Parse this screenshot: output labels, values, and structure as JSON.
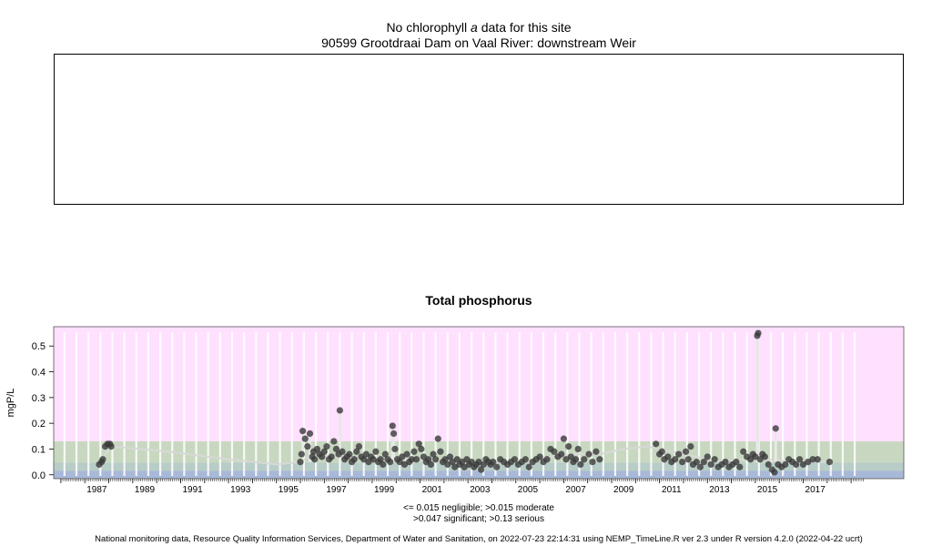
{
  "header": {
    "no_data_prefix": "No chlorophyll",
    "no_data_italic": "a",
    "no_data_suffix": "data for this site",
    "site": "90599 Grootdraai Dam on Vaal River: downstream Weir"
  },
  "footnote": {
    "line1": "<= 0.015 negligible; >0.015 moderate",
    "line2": ">0.047 significant; >0.13 serious"
  },
  "credit": "National monitoring data, Resource Quality Information Services, Department of Water and Sanitation, on 2022-07-23 22:14:31 using NEMP_TimeLine.R ver 2.3 under R version 4.2.0 (2022-04-22 ucrt)",
  "colors": {
    "negligible": "#a8b8d8",
    "moderate": "#b8ccc8",
    "significant": "#c8d8c0",
    "serious": "#ffe0ff",
    "points": "#3a3a3a",
    "trend": "#d8d8d8"
  },
  "chart_data": {
    "type": "scatter",
    "title": "Total phosphorus",
    "ylabel": "mgP/L",
    "xlabel": "",
    "xlim": [
      1985.7,
      2021.2
    ],
    "ylim": [
      -0.015,
      0.575
    ],
    "yticks": [
      0.0,
      0.1,
      0.2,
      0.3,
      0.4,
      0.5
    ],
    "ytick_labels": [
      "0.0",
      "0.1",
      "0.2",
      "0.3",
      "0.4",
      "0.5"
    ],
    "xticks": [
      1987,
      1989,
      1991,
      1993,
      1995,
      1997,
      1999,
      2001,
      2003,
      2005,
      2007,
      2009,
      2011,
      2013,
      2015,
      2017
    ],
    "xtick_labels": [
      "1987",
      "1989",
      "1991",
      "1993",
      "1995",
      "1997",
      "1999",
      "2001",
      "2003",
      "2005",
      "2007",
      "2009",
      "2011",
      "2013",
      "2015",
      "2017"
    ],
    "bands": [
      {
        "label": "negligible",
        "from": -0.015,
        "to": 0.015
      },
      {
        "label": "moderate",
        "from": 0.015,
        "to": 0.047
      },
      {
        "label": "significant",
        "from": 0.047,
        "to": 0.13
      },
      {
        "label": "serious",
        "from": 0.13,
        "to": 0.575
      }
    ],
    "series": [
      {
        "points": [
          [
            1987.6,
            0.04
          ],
          [
            1987.7,
            0.05
          ],
          [
            1987.75,
            0.06
          ],
          [
            1987.85,
            0.11
          ],
          [
            1987.95,
            0.12
          ],
          [
            1988.05,
            0.12
          ],
          [
            1988.1,
            0.11
          ],
          [
            1996.0,
            0.05
          ],
          [
            1996.05,
            0.08
          ],
          [
            1996.1,
            0.17
          ],
          [
            1996.2,
            0.14
          ],
          [
            1996.3,
            0.11
          ],
          [
            1996.4,
            0.16
          ],
          [
            1996.5,
            0.07
          ],
          [
            1996.55,
            0.09
          ],
          [
            1996.6,
            0.06
          ],
          [
            1996.7,
            0.1
          ],
          [
            1996.8,
            0.08
          ],
          [
            1996.9,
            0.07
          ],
          [
            1997.0,
            0.09
          ],
          [
            1997.1,
            0.11
          ],
          [
            1997.2,
            0.06
          ],
          [
            1997.3,
            0.07
          ],
          [
            1997.4,
            0.13
          ],
          [
            1997.5,
            0.1
          ],
          [
            1997.6,
            0.08
          ],
          [
            1997.65,
            0.25
          ],
          [
            1997.75,
            0.09
          ],
          [
            1997.85,
            0.06
          ],
          [
            1997.95,
            0.07
          ],
          [
            1998.05,
            0.08
          ],
          [
            1998.15,
            0.05
          ],
          [
            1998.25,
            0.06
          ],
          [
            1998.35,
            0.09
          ],
          [
            1998.45,
            0.11
          ],
          [
            1998.55,
            0.07
          ],
          [
            1998.65,
            0.06
          ],
          [
            1998.75,
            0.08
          ],
          [
            1998.85,
            0.05
          ],
          [
            1998.95,
            0.07
          ],
          [
            1999.05,
            0.06
          ],
          [
            1999.15,
            0.09
          ],
          [
            1999.25,
            0.05
          ],
          [
            1999.35,
            0.06
          ],
          [
            1999.45,
            0.04
          ],
          [
            1999.55,
            0.08
          ],
          [
            1999.65,
            0.06
          ],
          [
            1999.75,
            0.05
          ],
          [
            1999.85,
            0.19
          ],
          [
            1999.9,
            0.16
          ],
          [
            1999.95,
            0.1
          ],
          [
            2000.05,
            0.06
          ],
          [
            2000.15,
            0.05
          ],
          [
            2000.25,
            0.07
          ],
          [
            2000.35,
            0.04
          ],
          [
            2000.45,
            0.08
          ],
          [
            2000.55,
            0.05
          ],
          [
            2000.65,
            0.06
          ],
          [
            2000.75,
            0.09
          ],
          [
            2000.85,
            0.06
          ],
          [
            2000.95,
            0.12
          ],
          [
            2001.05,
            0.1
          ],
          [
            2001.15,
            0.07
          ],
          [
            2001.25,
            0.05
          ],
          [
            2001.35,
            0.06
          ],
          [
            2001.45,
            0.04
          ],
          [
            2001.55,
            0.08
          ],
          [
            2001.65,
            0.06
          ],
          [
            2001.75,
            0.14
          ],
          [
            2001.85,
            0.09
          ],
          [
            2001.95,
            0.05
          ],
          [
            2002.05,
            0.06
          ],
          [
            2002.15,
            0.04
          ],
          [
            2002.25,
            0.07
          ],
          [
            2002.35,
            0.05
          ],
          [
            2002.45,
            0.03
          ],
          [
            2002.55,
            0.06
          ],
          [
            2002.65,
            0.04
          ],
          [
            2002.75,
            0.05
          ],
          [
            2002.85,
            0.03
          ],
          [
            2002.95,
            0.06
          ],
          [
            2003.05,
            0.04
          ],
          [
            2003.15,
            0.05
          ],
          [
            2003.25,
            0.03
          ],
          [
            2003.35,
            0.04
          ],
          [
            2003.45,
            0.05
          ],
          [
            2003.55,
            0.02
          ],
          [
            2003.65,
            0.04
          ],
          [
            2003.75,
            0.06
          ],
          [
            2003.85,
            0.05
          ],
          [
            2003.95,
            0.04
          ],
          [
            2004.05,
            0.05
          ],
          [
            2004.2,
            0.03
          ],
          [
            2004.35,
            0.06
          ],
          [
            2004.5,
            0.05
          ],
          [
            2004.65,
            0.04
          ],
          [
            2004.8,
            0.05
          ],
          [
            2004.95,
            0.06
          ],
          [
            2005.1,
            0.04
          ],
          [
            2005.25,
            0.05
          ],
          [
            2005.4,
            0.06
          ],
          [
            2005.55,
            0.03
          ],
          [
            2005.7,
            0.05
          ],
          [
            2005.85,
            0.06
          ],
          [
            2006.0,
            0.07
          ],
          [
            2006.15,
            0.05
          ],
          [
            2006.3,
            0.06
          ],
          [
            2006.45,
            0.1
          ],
          [
            2006.6,
            0.09
          ],
          [
            2006.75,
            0.07
          ],
          [
            2006.9,
            0.08
          ],
          [
            2007.0,
            0.14
          ],
          [
            2007.1,
            0.06
          ],
          [
            2007.2,
            0.11
          ],
          [
            2007.3,
            0.07
          ],
          [
            2007.4,
            0.05
          ],
          [
            2007.5,
            0.06
          ],
          [
            2007.6,
            0.1
          ],
          [
            2007.7,
            0.04
          ],
          [
            2007.85,
            0.06
          ],
          [
            2008.05,
            0.08
          ],
          [
            2008.2,
            0.05
          ],
          [
            2008.35,
            0.09
          ],
          [
            2008.5,
            0.06
          ],
          [
            2010.85,
            0.12
          ],
          [
            2011.0,
            0.08
          ],
          [
            2011.1,
            0.09
          ],
          [
            2011.2,
            0.06
          ],
          [
            2011.35,
            0.07
          ],
          [
            2011.5,
            0.05
          ],
          [
            2011.65,
            0.06
          ],
          [
            2011.8,
            0.08
          ],
          [
            2011.95,
            0.05
          ],
          [
            2012.1,
            0.09
          ],
          [
            2012.2,
            0.06
          ],
          [
            2012.3,
            0.11
          ],
          [
            2012.4,
            0.04
          ],
          [
            2012.55,
            0.05
          ],
          [
            2012.7,
            0.03
          ],
          [
            2012.85,
            0.05
          ],
          [
            2013.0,
            0.07
          ],
          [
            2013.15,
            0.04
          ],
          [
            2013.3,
            0.06
          ],
          [
            2013.45,
            0.03
          ],
          [
            2013.6,
            0.04
          ],
          [
            2013.75,
            0.05
          ],
          [
            2013.9,
            0.03
          ],
          [
            2014.05,
            0.04
          ],
          [
            2014.2,
            0.05
          ],
          [
            2014.35,
            0.03
          ],
          [
            2014.5,
            0.09
          ],
          [
            2014.65,
            0.07
          ],
          [
            2014.8,
            0.06
          ],
          [
            2014.9,
            0.08
          ],
          [
            2015.0,
            0.07
          ],
          [
            2015.08,
            0.54
          ],
          [
            2015.12,
            0.55
          ],
          [
            2015.2,
            0.06
          ],
          [
            2015.3,
            0.08
          ],
          [
            2015.4,
            0.07
          ],
          [
            2015.55,
            0.04
          ],
          [
            2015.7,
            0.02
          ],
          [
            2015.8,
            0.01
          ],
          [
            2015.85,
            0.18
          ],
          [
            2015.95,
            0.04
          ],
          [
            2016.1,
            0.03
          ],
          [
            2016.25,
            0.04
          ],
          [
            2016.4,
            0.06
          ],
          [
            2016.55,
            0.05
          ],
          [
            2016.7,
            0.04
          ],
          [
            2016.85,
            0.06
          ],
          [
            2017.0,
            0.04
          ],
          [
            2017.2,
            0.05
          ],
          [
            2017.4,
            0.06
          ],
          [
            2017.6,
            0.06
          ],
          [
            2018.1,
            0.05
          ]
        ]
      }
    ],
    "trend": [
      [
        1987.7,
        0.06
      ],
      [
        1988.1,
        0.11
      ],
      [
        1990.5,
        0.09
      ],
      [
        1993.0,
        0.06
      ],
      [
        1995.0,
        0.04
      ],
      [
        1996.0,
        0.05
      ],
      [
        1996.5,
        0.08
      ],
      [
        1997.5,
        0.07
      ],
      [
        1998.5,
        0.07
      ],
      [
        1999.5,
        0.06
      ],
      [
        2000.5,
        0.06
      ],
      [
        2001.5,
        0.06
      ],
      [
        2002.5,
        0.05
      ],
      [
        2003.5,
        0.04
      ],
      [
        2004.5,
        0.05
      ],
      [
        2005.5,
        0.05
      ],
      [
        2006.5,
        0.07
      ],
      [
        2007.5,
        0.08
      ],
      [
        2008.5,
        0.08
      ],
      [
        2009.5,
        0.1
      ],
      [
        2010.5,
        0.11
      ],
      [
        2011.5,
        0.09
      ],
      [
        2012.5,
        0.07
      ],
      [
        2013.5,
        0.05
      ],
      [
        2014.5,
        0.06
      ],
      [
        2015.5,
        0.06
      ],
      [
        2016.5,
        0.05
      ],
      [
        2017.5,
        0.05
      ],
      [
        2018.1,
        0.05
      ]
    ]
  }
}
